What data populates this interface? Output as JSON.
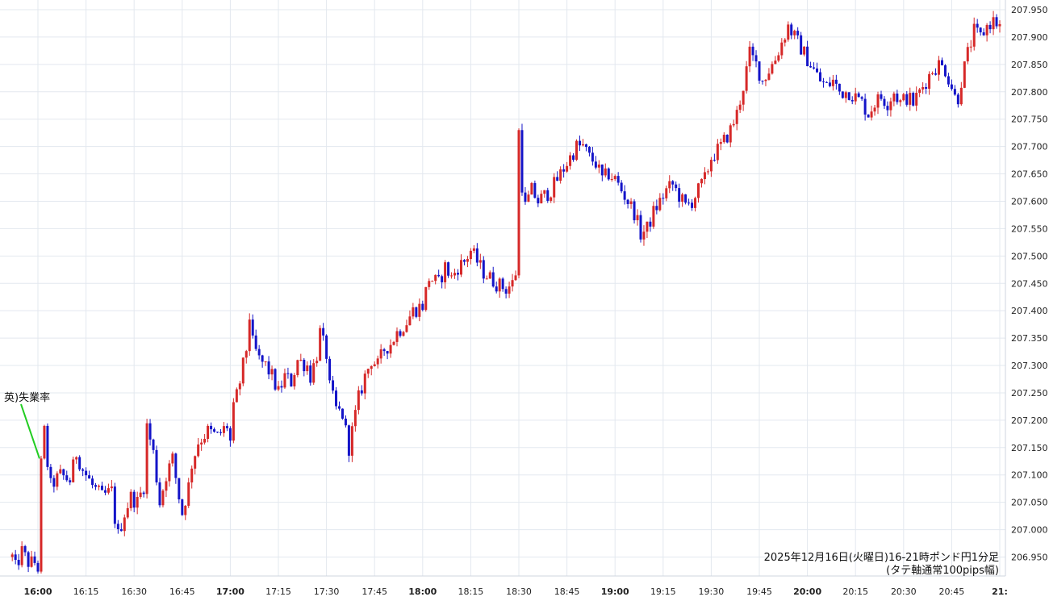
{
  "chart_data": {
    "type": "candlestick",
    "title": "2025年12月16日(火曜日)16-21時ポンド円1分足",
    "subtitle": "(タテ軸通常100pips幅)",
    "xlabel": "",
    "ylabel": "",
    "timeframe_minutes": 1,
    "x_range": [
      "15:52",
      "21:00"
    ],
    "ylim": [
      206.92,
      207.955
    ],
    "y_ticks": [
      "207.950",
      "207.900",
      "207.850",
      "207.800",
      "207.750",
      "207.700",
      "207.650",
      "207.600",
      "207.550",
      "207.500",
      "207.450",
      "207.400",
      "207.350",
      "207.300",
      "207.250",
      "207.200",
      "207.150",
      "207.100",
      "207.050",
      "207.000",
      "206.950"
    ],
    "x_ticks": [
      {
        "label": "16:00",
        "bold": true
      },
      {
        "label": "16:15",
        "bold": false
      },
      {
        "label": "16:30",
        "bold": false
      },
      {
        "label": "16:45",
        "bold": false
      },
      {
        "label": "17:00",
        "bold": true
      },
      {
        "label": "17:15",
        "bold": false
      },
      {
        "label": "17:30",
        "bold": false
      },
      {
        "label": "17:45",
        "bold": false
      },
      {
        "label": "18:00",
        "bold": true
      },
      {
        "label": "18:15",
        "bold": false
      },
      {
        "label": "18:30",
        "bold": false
      },
      {
        "label": "18:45",
        "bold": false
      },
      {
        "label": "19:00",
        "bold": true
      },
      {
        "label": "19:15",
        "bold": false
      },
      {
        "label": "19:30",
        "bold": false
      },
      {
        "label": "19:45",
        "bold": false
      },
      {
        "label": "20:00",
        "bold": true
      },
      {
        "label": "20:15",
        "bold": false
      },
      {
        "label": "20:30",
        "bold": false
      },
      {
        "label": "20:45",
        "bold": false
      },
      {
        "label": "21:",
        "bold": true
      }
    ],
    "grid": true,
    "colors": {
      "up": "#d62828",
      "down": "#1414c8",
      "grid": "#e3e8ef",
      "annotation_line": "#22cc22"
    },
    "annotation": {
      "text": "英)失業率",
      "time": "16:01",
      "price": 207.13
    },
    "path": [
      [
        "15:52",
        206.95
      ],
      [
        "15:53",
        206.93
      ],
      [
        "15:55",
        206.96
      ],
      [
        "15:57",
        206.94
      ],
      [
        "15:59",
        206.94
      ],
      [
        "16:00",
        206.93
      ],
      [
        "16:01",
        207.13
      ],
      [
        "16:02",
        207.18
      ],
      [
        "16:03",
        207.12
      ],
      [
        "16:04",
        207.08
      ],
      [
        "16:07",
        207.1
      ],
      [
        "16:10",
        207.09
      ],
      [
        "16:12",
        207.14
      ],
      [
        "16:14",
        207.11
      ],
      [
        "16:17",
        207.08
      ],
      [
        "16:20",
        207.06
      ],
      [
        "16:23",
        207.07
      ],
      [
        "16:24",
        207.02
      ],
      [
        "16:25",
        206.99
      ],
      [
        "16:27",
        207.03
      ],
      [
        "16:29",
        207.06
      ],
      [
        "16:31",
        207.05
      ],
      [
        "16:33",
        207.08
      ],
      [
        "16:34",
        207.19
      ],
      [
        "16:36",
        207.14
      ],
      [
        "16:38",
        207.05
      ],
      [
        "16:40",
        207.1
      ],
      [
        "16:42",
        207.13
      ],
      [
        "16:44",
        207.06
      ],
      [
        "16:45",
        207.03
      ],
      [
        "16:47",
        207.08
      ],
      [
        "16:48",
        207.12
      ],
      [
        "16:50",
        207.16
      ],
      [
        "16:53",
        207.18
      ],
      [
        "16:56",
        207.17
      ],
      [
        "16:59",
        207.19
      ],
      [
        "17:00",
        207.16
      ],
      [
        "17:01",
        207.22
      ],
      [
        "17:03",
        207.27
      ],
      [
        "17:05",
        207.33
      ],
      [
        "17:06",
        207.39
      ],
      [
        "17:07",
        207.34
      ],
      [
        "17:09",
        207.31
      ],
      [
        "17:11",
        207.3
      ],
      [
        "17:13",
        207.28
      ],
      [
        "17:15",
        207.25
      ],
      [
        "17:17",
        207.28
      ],
      [
        "17:19",
        207.27
      ],
      [
        "17:21",
        207.31
      ],
      [
        "17:24",
        207.3
      ],
      [
        "17:25",
        207.28
      ],
      [
        "17:27",
        207.32
      ],
      [
        "17:28",
        207.36
      ],
      [
        "17:30",
        207.32
      ],
      [
        "17:31",
        207.26
      ],
      [
        "17:33",
        207.22
      ],
      [
        "17:35",
        207.21
      ],
      [
        "17:36",
        207.18
      ],
      [
        "17:37",
        207.15
      ],
      [
        "17:38",
        207.18
      ],
      [
        "17:40",
        207.24
      ],
      [
        "17:42",
        207.28
      ],
      [
        "17:44",
        207.31
      ],
      [
        "17:46",
        207.3
      ],
      [
        "17:48",
        207.33
      ],
      [
        "17:50",
        207.34
      ],
      [
        "17:52",
        207.36
      ],
      [
        "17:55",
        207.38
      ],
      [
        "17:57",
        207.4
      ],
      [
        "18:00",
        207.41
      ],
      [
        "18:02",
        207.46
      ],
      [
        "18:05",
        207.45
      ],
      [
        "18:07",
        207.48
      ],
      [
        "18:09",
        207.46
      ],
      [
        "18:11",
        207.48
      ],
      [
        "18:13",
        207.49
      ],
      [
        "18:15",
        207.51
      ],
      [
        "18:17",
        207.49
      ],
      [
        "18:19",
        207.47
      ],
      [
        "18:21",
        207.46
      ],
      [
        "18:23",
        207.45
      ],
      [
        "18:26",
        207.44
      ],
      [
        "18:28",
        207.45
      ],
      [
        "18:29",
        207.47
      ],
      [
        "18:30",
        207.73
      ],
      [
        "18:31",
        207.63
      ],
      [
        "18:32",
        207.59
      ],
      [
        "18:34",
        207.62
      ],
      [
        "18:36",
        207.6
      ],
      [
        "18:38",
        207.61
      ],
      [
        "18:40",
        207.62
      ],
      [
        "18:42",
        207.64
      ],
      [
        "18:44",
        207.66
      ],
      [
        "18:46",
        207.68
      ],
      [
        "18:48",
        207.7
      ],
      [
        "18:50",
        207.7
      ],
      [
        "18:52",
        207.68
      ],
      [
        "18:54",
        207.67
      ],
      [
        "18:56",
        207.64
      ],
      [
        "18:58",
        207.65
      ],
      [
        "19:00",
        207.64
      ],
      [
        "19:02",
        207.62
      ],
      [
        "19:04",
        207.6
      ],
      [
        "19:06",
        207.58
      ],
      [
        "19:08",
        207.54
      ],
      [
        "19:10",
        207.55
      ],
      [
        "19:12",
        207.58
      ],
      [
        "19:14",
        207.6
      ],
      [
        "19:16",
        207.62
      ],
      [
        "19:18",
        207.63
      ],
      [
        "19:20",
        207.61
      ],
      [
        "19:22",
        207.59
      ],
      [
        "19:24",
        207.6
      ],
      [
        "19:26",
        207.62
      ],
      [
        "19:28",
        207.64
      ],
      [
        "19:30",
        207.68
      ],
      [
        "19:33",
        207.7
      ],
      [
        "19:36",
        207.73
      ],
      [
        "19:38",
        207.76
      ],
      [
        "19:40",
        207.81
      ],
      [
        "19:42",
        207.87
      ],
      [
        "19:44",
        207.85
      ],
      [
        "19:46",
        207.82
      ],
      [
        "19:48",
        207.84
      ],
      [
        "19:50",
        207.86
      ],
      [
        "19:52",
        207.89
      ],
      [
        "19:54",
        207.92
      ],
      [
        "19:56",
        207.9
      ],
      [
        "19:58",
        207.88
      ],
      [
        "20:00",
        207.86
      ],
      [
        "20:02",
        207.84
      ],
      [
        "20:04",
        207.82
      ],
      [
        "20:06",
        207.81
      ],
      [
        "20:08",
        207.82
      ],
      [
        "20:10",
        207.8
      ],
      [
        "20:13",
        207.8
      ],
      [
        "20:15",
        207.79
      ],
      [
        "20:17",
        207.78
      ],
      [
        "20:19",
        207.76
      ],
      [
        "20:21",
        207.78
      ],
      [
        "20:23",
        207.79
      ],
      [
        "20:25",
        207.78
      ],
      [
        "20:27",
        207.8
      ],
      [
        "20:29",
        207.78
      ],
      [
        "20:31",
        207.79
      ],
      [
        "20:33",
        207.78
      ],
      [
        "20:35",
        207.8
      ],
      [
        "20:37",
        207.82
      ],
      [
        "20:39",
        207.84
      ],
      [
        "20:41",
        207.85
      ],
      [
        "20:43",
        207.84
      ],
      [
        "20:45",
        207.81
      ],
      [
        "20:46",
        207.79
      ],
      [
        "20:47",
        207.79
      ],
      [
        "20:48",
        207.82
      ],
      [
        "20:50",
        207.87
      ],
      [
        "20:52",
        207.91
      ],
      [
        "20:54",
        207.9
      ],
      [
        "20:56",
        207.92
      ],
      [
        "20:58",
        207.93
      ],
      [
        "21:00",
        207.92
      ]
    ]
  }
}
